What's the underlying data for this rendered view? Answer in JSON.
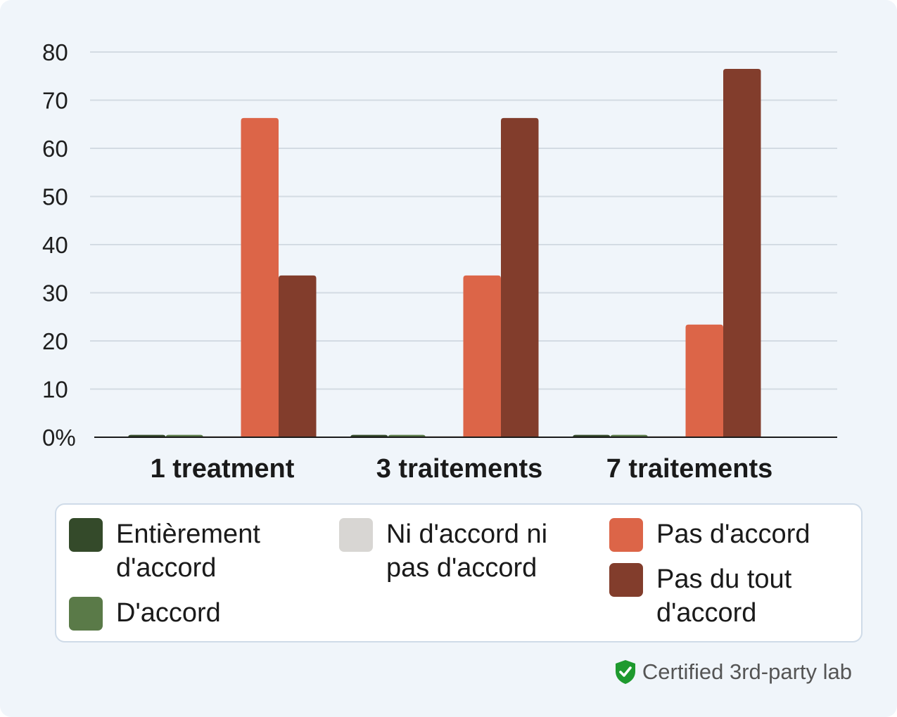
{
  "chart_data": {
    "type": "bar",
    "categories": [
      "1 treatment",
      "3 traitements",
      "7 traitements"
    ],
    "series": [
      {
        "name": "Entièrement d'accord",
        "color": "#344a2a",
        "values": [
          0.5,
          0.5,
          0.5
        ]
      },
      {
        "name": "D'accord",
        "color": "#5a7a48",
        "values": [
          0.5,
          0.5,
          0.5
        ]
      },
      {
        "name": "Ni d'accord ni pas d'accord",
        "color": "#d8d6d3",
        "values": [
          0.3,
          0.3,
          0.3
        ]
      },
      {
        "name": "Pas d'accord",
        "color": "#dc6548",
        "values": [
          66.3,
          33.6,
          23.4
        ]
      },
      {
        "name": "Pas du tout d'accord",
        "color": "#823d2c",
        "values": [
          33.6,
          66.3,
          76.5
        ]
      }
    ],
    "yticks": [
      "0%",
      "10",
      "20",
      "30",
      "40",
      "50",
      "60",
      "70",
      "80"
    ],
    "ylim": [
      0,
      80
    ],
    "grid": true,
    "legend_position": "bottom"
  },
  "legend": {
    "entierement_line1": "Entièrement",
    "entierement_line2": "d'accord",
    "daccord": "D'accord",
    "ni_line1": "Ni d'accord ni",
    "ni_line2": "pas d'accord",
    "pas_daccord": "Pas d'accord",
    "pas_du_tout_line1": "Pas du tout",
    "pas_du_tout_line2": "d'accord"
  },
  "badge": {
    "icon": "shield-check-icon",
    "text": "Certified 3rd-party lab",
    "color": "#1e9a2e"
  }
}
